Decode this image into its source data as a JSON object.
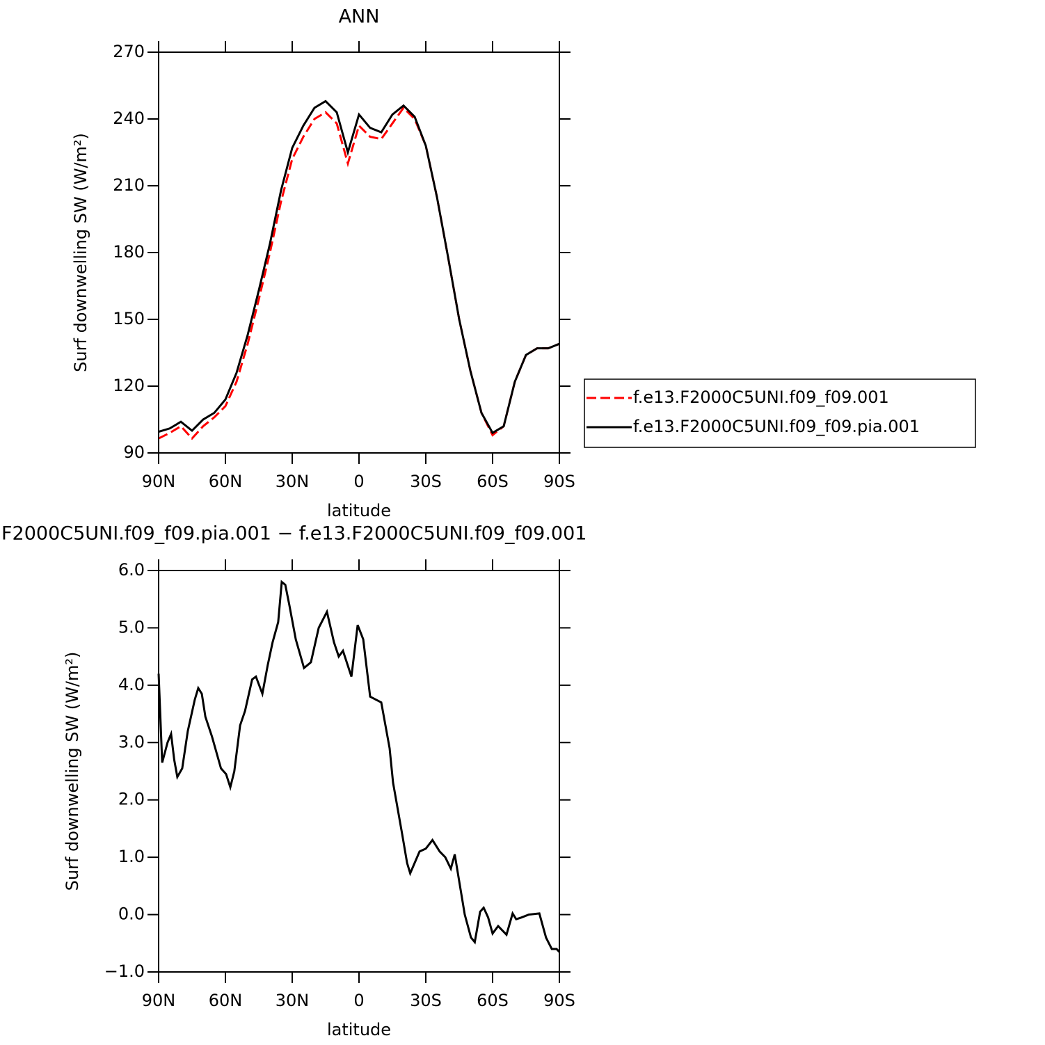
{
  "chart_data": [
    {
      "type": "line",
      "title": "ANN",
      "xlabel": "latitude",
      "ylabel": "Surf downwelling SW (W/m²)",
      "x": [
        90,
        85,
        80,
        75,
        70,
        65,
        60,
        55,
        50,
        45,
        40,
        35,
        30,
        25,
        20,
        15,
        10,
        5,
        0,
        -5,
        -10,
        -15,
        -20,
        -25,
        -30,
        -35,
        -40,
        -45,
        -50,
        -55,
        -60,
        -65,
        -70,
        -75,
        -80,
        -85,
        -90
      ],
      "xlim": [
        90,
        -90
      ],
      "xticks": [
        {
          "value": 90,
          "label": "90N"
        },
        {
          "value": 60,
          "label": "60N"
        },
        {
          "value": 30,
          "label": "30N"
        },
        0,
        {
          "value": -30,
          "label": "30S"
        },
        {
          "value": -60,
          "label": "60S"
        },
        {
          "value": -90,
          "label": "90S"
        }
      ],
      "ylim": [
        90,
        270
      ],
      "yticks": [
        90,
        120,
        150,
        180,
        210,
        240,
        270
      ],
      "legend": "right",
      "series": [
        {
          "name": "f.e13.F2000C5UNI.f09_f09.001",
          "color": "#ff0000",
          "linestyle": "dashed",
          "values": [
            96.5,
            99,
            102,
            96.5,
            102,
            106,
            111,
            122,
            139,
            159,
            180,
            203,
            222,
            232,
            240,
            243,
            238,
            220,
            237,
            232,
            231,
            238,
            245,
            240,
            228,
            205,
            178,
            150,
            127,
            108,
            98,
            102,
            122,
            134,
            137,
            137,
            139
          ]
        },
        {
          "name": "f.e13.F2000C5UNI.f09_f09.pia.001",
          "color": "#000000",
          "linestyle": "solid",
          "values": [
            99.5,
            101,
            104,
            100,
            105,
            108,
            114,
            126,
            143,
            163,
            184,
            208,
            227,
            237,
            245,
            248,
            243,
            225,
            242,
            236,
            234,
            242,
            246,
            241,
            228,
            205,
            178,
            150,
            127,
            108,
            99,
            102,
            122,
            134,
            137,
            137,
            139
          ]
        }
      ]
    },
    {
      "type": "line",
      "title": "F2000C5UNI.f09_f09.pia.001 − f.e13.F2000C5UNI.f09_f09.001",
      "xlabel": "latitude",
      "ylabel": "Surf downwelling SW (W/m²)",
      "x": [
        90,
        88.4,
        86,
        84.4,
        83,
        81.6,
        79.4,
        76.9,
        73.75,
        72.2,
        70.6,
        69,
        66,
        62,
        59.7,
        57.8,
        56,
        53.4,
        51.2,
        48,
        46.3,
        43.4,
        41,
        38.8,
        36.3,
        34.7,
        33.1,
        31.3,
        28.4,
        24.7,
        21.6,
        18.1,
        14.4,
        11.25,
        9.1,
        7.2,
        3.4,
        0.6,
        -1.9,
        -5,
        -7.5,
        -10,
        -13.75,
        -15.3,
        -19.4,
        -21.6,
        -23,
        -27.2,
        -30,
        -33,
        -36.25,
        -38.75,
        -41.25,
        -43,
        -47.5,
        -50.3,
        -52,
        -54.4,
        -56,
        -58,
        -60,
        -62.5,
        -66.25,
        -69,
        -70.6,
        -73,
        -76.25,
        -81,
        -84,
        -86.6,
        -88.75,
        -90
      ],
      "xlim": [
        90,
        -90
      ],
      "xticks": [
        {
          "value": 90,
          "label": "90N"
        },
        {
          "value": 60,
          "label": "60N"
        },
        {
          "value": 30,
          "label": "30N"
        },
        0,
        {
          "value": -30,
          "label": "30S"
        },
        {
          "value": -60,
          "label": "60S"
        },
        {
          "value": -90,
          "label": "90S"
        }
      ],
      "ylim": [
        -1,
        6
      ],
      "yticks": [
        {
          "value": -1,
          "label": "−1.0"
        },
        {
          "value": 0,
          "label": "0.0"
        },
        {
          "value": 1,
          "label": "1.0"
        },
        {
          "value": 2,
          "label": "2.0"
        },
        {
          "value": 3,
          "label": "3.0"
        },
        {
          "value": 4,
          "label": "4.0"
        },
        {
          "value": 5,
          "label": "5.0"
        },
        {
          "value": 6,
          "label": "6.0"
        }
      ],
      "series": [
        {
          "color": "#000000",
          "linestyle": "solid",
          "values": [
            4.2,
            2.65,
            3.0,
            3.15,
            2.7,
            2.4,
            2.55,
            3.2,
            3.75,
            3.95,
            3.85,
            3.45,
            3.1,
            2.55,
            2.45,
            2.22,
            2.5,
            3.3,
            3.55,
            4.1,
            4.15,
            3.85,
            4.35,
            4.75,
            5.1,
            5.8,
            5.75,
            5.4,
            4.8,
            4.3,
            4.4,
            5.0,
            5.28,
            4.75,
            4.5,
            4.6,
            4.15,
            5.05,
            4.8,
            3.8,
            3.75,
            3.7,
            2.9,
            2.3,
            1.4,
            0.9,
            0.72,
            1.1,
            1.15,
            1.3,
            1.1,
            1.0,
            0.8,
            1.05,
            0.0,
            -0.4,
            -0.48,
            0.05,
            0.12,
            -0.05,
            -0.33,
            -0.2,
            -0.35,
            0.02,
            -0.08,
            -0.05,
            0.0,
            0.02,
            -0.4,
            -0.6,
            -0.6,
            -0.65
          ]
        }
      ]
    }
  ]
}
